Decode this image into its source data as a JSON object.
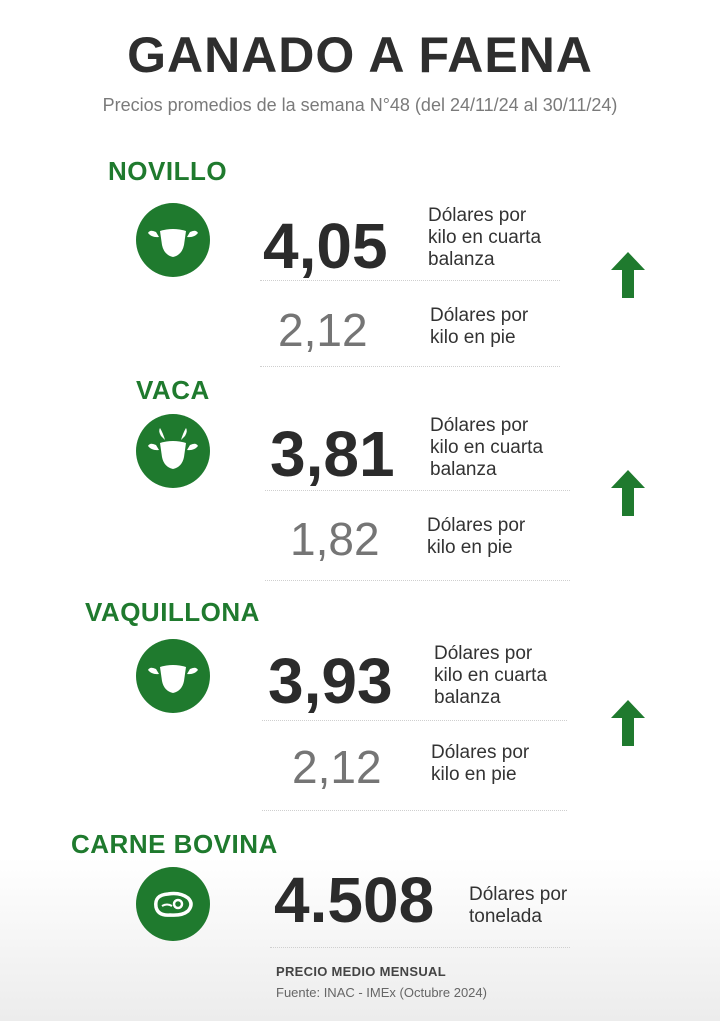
{
  "header": {
    "title": "GANADO A FAENA",
    "subtitle": "Precios promedios de la semana N°48 (del 24/11/24 al 30/11/24)"
  },
  "colors": {
    "brand_green": "#1f7a2e",
    "text_dark": "#2b2b2b",
    "text_gray": "#757575"
  },
  "sections": {
    "novillo": {
      "title": "NOVILLO",
      "icon": "cow-head-icon",
      "price_cuarta": "4,05",
      "unit_cuarta_1": "Dólares por",
      "unit_cuarta_2": "kilo en cuarta",
      "unit_cuarta_3": "balanza",
      "price_pie": "2,12",
      "unit_pie_1": "Dólares por",
      "unit_pie_2": "kilo en pie",
      "trend": "up-arrow-icon"
    },
    "vaca": {
      "title": "VACA",
      "icon": "cow-head-icon",
      "price_cuarta": "3,81",
      "unit_cuarta_1": "Dólares por",
      "unit_cuarta_2": "kilo en cuarta",
      "unit_cuarta_3": "balanza",
      "price_pie": "1,82",
      "unit_pie_1": "Dólares por",
      "unit_pie_2": "kilo en pie",
      "trend": "up-arrow-icon"
    },
    "vaquillona": {
      "title": "VAQUILLONA",
      "icon": "cow-head-icon",
      "price_cuarta": "3,93",
      "unit_cuarta_1": "Dólares por",
      "unit_cuarta_2": "kilo en cuarta",
      "unit_cuarta_3": "balanza",
      "price_pie": "2,12",
      "unit_pie_1": "Dólares por",
      "unit_pie_2": "kilo en pie",
      "trend": "up-arrow-icon"
    },
    "carne": {
      "title": "CARNE BOVINA",
      "icon": "steak-icon",
      "price": "4.508",
      "unit_1": "Dólares por",
      "unit_2": "tonelada"
    }
  },
  "footer": {
    "note": "PRECIO MEDIO MENSUAL",
    "source": "Fuente: INAC - IMEx (Octubre 2024)"
  }
}
